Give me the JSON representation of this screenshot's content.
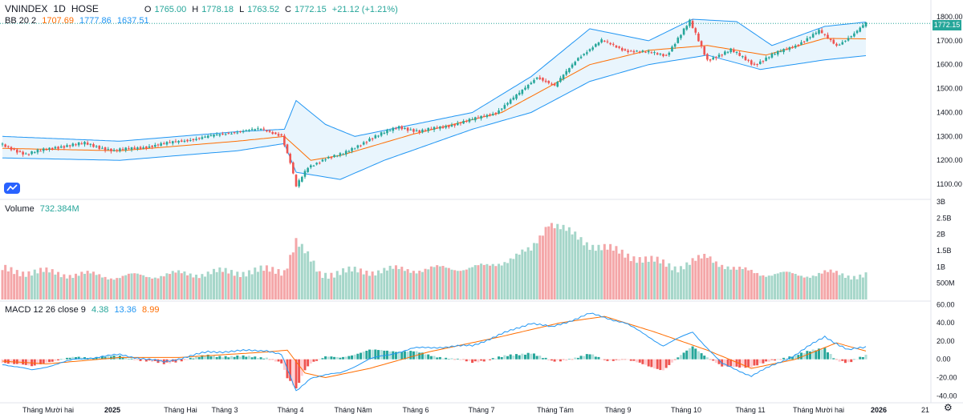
{
  "header": {
    "symbol": "VNINDEX",
    "interval": "1D",
    "exchange": "HOSE",
    "o_label": "O",
    "o_value": "1765.00",
    "h_label": "H",
    "h_value": "1778.18",
    "l_label": "L",
    "l_value": "1763.52",
    "c_label": "C",
    "c_value": "1772.15",
    "change": "+21.12 (+1.21%)"
  },
  "bb_legend": {
    "label": "BB 20 2",
    "basis": "1707.69",
    "upper": "1777.86",
    "lower": "1637.51"
  },
  "volume_legend": {
    "label": "Volume",
    "value": "732.384M"
  },
  "macd_legend": {
    "label": "MACD 12 26 close 9",
    "hist": "4.38",
    "macd": "13.36",
    "signal": "8.99"
  },
  "last_price": "1772.15",
  "colors": {
    "up": "#26a69a",
    "down": "#ef5350",
    "bb_upper": "#2196f3",
    "bb_basis": "#ff6d00",
    "bb_fill": "#e3f2fd",
    "macd": "#2196f3",
    "signal": "#ff6d00"
  },
  "icons": {
    "logo": "tradingview-logo-icon",
    "settings": "gear-icon"
  },
  "chart_data": [
    {
      "type": "candlestick",
      "title": "VNINDEX 1D HOSE",
      "x_ticks": [
        "Tháng Mười hai",
        "2025",
        "Tháng Hai",
        "Tháng 3",
        "Tháng 4",
        "Tháng Năm",
        "Tháng 6",
        "Tháng 7",
        "Tháng Tám",
        "Tháng 9",
        "Tháng 10",
        "Tháng 11",
        "Tháng Mười hai",
        "2026",
        "21"
      ],
      "y_ticks": [
        "1800.00",
        "1700.00",
        "1600.00",
        "1500.00",
        "1400.00",
        "1300.00",
        "1200.00",
        "1100.00"
      ],
      "ylim": [
        1040,
        1810
      ],
      "close_anchors": [
        [
          0,
          1265
        ],
        [
          8,
          1225
        ],
        [
          18,
          1255
        ],
        [
          28,
          1270
        ],
        [
          38,
          1240
        ],
        [
          48,
          1255
        ],
        [
          58,
          1275
        ],
        [
          68,
          1295
        ],
        [
          80,
          1320
        ],
        [
          88,
          1330
        ],
        [
          95,
          1305
        ],
        [
          98,
          1190
        ],
        [
          100,
          1090
        ],
        [
          104,
          1170
        ],
        [
          110,
          1210
        ],
        [
          116,
          1225
        ],
        [
          125,
          1290
        ],
        [
          135,
          1340
        ],
        [
          142,
          1320
        ],
        [
          150,
          1340
        ],
        [
          160,
          1370
        ],
        [
          168,
          1400
        ],
        [
          176,
          1480
        ],
        [
          182,
          1550
        ],
        [
          188,
          1510
        ],
        [
          196,
          1630
        ],
        [
          204,
          1700
        ],
        [
          212,
          1660
        ],
        [
          220,
          1650
        ],
        [
          226,
          1640
        ],
        [
          234,
          1780
        ],
        [
          240,
          1620
        ],
        [
          248,
          1660
        ],
        [
          256,
          1600
        ],
        [
          262,
          1640
        ],
        [
          270,
          1680
        ],
        [
          278,
          1740
        ],
        [
          284,
          1680
        ],
        [
          290,
          1730
        ],
        [
          294,
          1772.15
        ]
      ],
      "bb_upper_anchors": [
        [
          0,
          1300
        ],
        [
          40,
          1280
        ],
        [
          80,
          1320
        ],
        [
          96,
          1330
        ],
        [
          100,
          1450
        ],
        [
          110,
          1350
        ],
        [
          120,
          1300
        ],
        [
          140,
          1350
        ],
        [
          160,
          1400
        ],
        [
          180,
          1550
        ],
        [
          200,
          1750
        ],
        [
          220,
          1700
        ],
        [
          235,
          1790
        ],
        [
          250,
          1780
        ],
        [
          262,
          1680
        ],
        [
          280,
          1760
        ],
        [
          294,
          1778
        ]
      ],
      "bb_basis_anchors": [
        [
          0,
          1250
        ],
        [
          40,
          1240
        ],
        [
          80,
          1280
        ],
        [
          96,
          1300
        ],
        [
          105,
          1200
        ],
        [
          115,
          1220
        ],
        [
          140,
          1310
        ],
        [
          170,
          1400
        ],
        [
          200,
          1600
        ],
        [
          220,
          1660
        ],
        [
          240,
          1680
        ],
        [
          260,
          1640
        ],
        [
          280,
          1710
        ],
        [
          294,
          1707.69
        ]
      ],
      "bb_lower_anchors": [
        [
          0,
          1210
        ],
        [
          40,
          1200
        ],
        [
          80,
          1240
        ],
        [
          96,
          1270
        ],
        [
          100,
          1150
        ],
        [
          115,
          1120
        ],
        [
          130,
          1200
        ],
        [
          160,
          1330
        ],
        [
          180,
          1400
        ],
        [
          200,
          1530
        ],
        [
          220,
          1600
        ],
        [
          240,
          1640
        ],
        [
          258,
          1580
        ],
        [
          280,
          1620
        ],
        [
          294,
          1637.51
        ]
      ]
    },
    {
      "type": "bar",
      "title": "Volume",
      "y_ticks": [
        "3B",
        "2.5B",
        "2B",
        "1.5B",
        "1B",
        "500M"
      ],
      "ylim": [
        0,
        3000
      ],
      "unit": "M",
      "volume_anchors": [
        [
          0,
          900
        ],
        [
          40,
          700
        ],
        [
          80,
          850
        ],
        [
          96,
          900
        ],
        [
          100,
          1800
        ],
        [
          104,
          1300
        ],
        [
          108,
          800
        ],
        [
          130,
          900
        ],
        [
          150,
          950
        ],
        [
          165,
          1000
        ],
        [
          180,
          1500
        ],
        [
          186,
          2400
        ],
        [
          190,
          2200
        ],
        [
          200,
          1700
        ],
        [
          210,
          1450
        ],
        [
          220,
          1200
        ],
        [
          230,
          1000
        ],
        [
          240,
          1300
        ],
        [
          250,
          900
        ],
        [
          260,
          800
        ],
        [
          270,
          750
        ],
        [
          280,
          800
        ],
        [
          294,
          732
        ]
      ]
    },
    {
      "type": "line",
      "title": "MACD 12 26 close 9",
      "y_ticks": [
        "60.00",
        "40.00",
        "20.00",
        "0.00",
        "-20.00",
        "-40.00"
      ],
      "ylim": [
        -45,
        62
      ],
      "macd_anchors": [
        [
          0,
          -5
        ],
        [
          10,
          -12
        ],
        [
          25,
          0
        ],
        [
          40,
          5
        ],
        [
          55,
          -3
        ],
        [
          70,
          8
        ],
        [
          90,
          10
        ],
        [
          95,
          5
        ],
        [
          100,
          -35
        ],
        [
          105,
          -20
        ],
        [
          115,
          -15
        ],
        [
          125,
          0
        ],
        [
          140,
          12
        ],
        [
          160,
          15
        ],
        [
          180,
          40
        ],
        [
          187,
          35
        ],
        [
          200,
          50
        ],
        [
          212,
          40
        ],
        [
          225,
          15
        ],
        [
          235,
          30
        ],
        [
          245,
          -5
        ],
        [
          255,
          -18
        ],
        [
          270,
          5
        ],
        [
          280,
          25
        ],
        [
          288,
          10
        ],
        [
          294,
          13.36
        ]
      ],
      "signal_anchors": [
        [
          0,
          -2
        ],
        [
          15,
          -5
        ],
        [
          40,
          2
        ],
        [
          60,
          2
        ],
        [
          90,
          8
        ],
        [
          97,
          10
        ],
        [
          103,
          -15
        ],
        [
          110,
          -20
        ],
        [
          125,
          -10
        ],
        [
          145,
          8
        ],
        [
          170,
          25
        ],
        [
          190,
          40
        ],
        [
          205,
          47
        ],
        [
          222,
          30
        ],
        [
          240,
          10
        ],
        [
          255,
          -10
        ],
        [
          270,
          0
        ],
        [
          284,
          18
        ],
        [
          294,
          8.99
        ]
      ],
      "hist_last": 4.38
    }
  ]
}
